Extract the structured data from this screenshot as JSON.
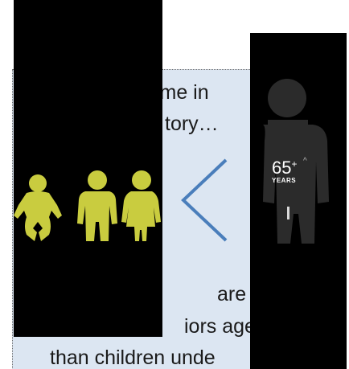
{
  "slide": {
    "text_lines": [
      "time in",
      "tory…",
      "are now",
      "iors aged",
      "than children unde"
    ],
    "badge": {
      "number": "65",
      "plus": "+",
      "unit": "YEARS",
      "corner_mark": "^"
    },
    "colors": {
      "box_fill": "#dce6f2",
      "box_border": "#6f6f6f",
      "panel_bg": "#000000",
      "children_fill": "#c9cc3f",
      "senior_fill": "#2b2b2b",
      "chevron": "#4a7ebb",
      "text": "#1a1a1a"
    },
    "icons": {
      "baby": "baby-icon",
      "boy": "child-boy-icon",
      "girl": "child-girl-icon",
      "less_than": "less-than-chevron-icon",
      "senior": "senior-person-icon"
    }
  }
}
